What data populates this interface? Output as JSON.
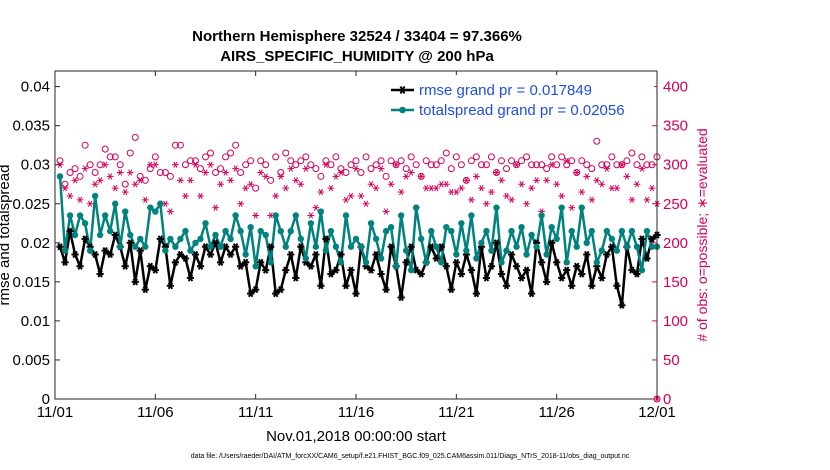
{
  "chart_data": {
    "type": "line",
    "title": "Northern Hemisphere 32524 / 33404 = 97.366%",
    "subtitle": "AIRS_SPECIFIC_HUMIDITY @ 200 hPa",
    "xlabel": "Nov.01,2018 00:00:00 start",
    "ylabel": "rmse and totalspread",
    "y2label": "# of obs: o=possible; ∗=evaluated",
    "footnote": "data file: /Users/raeder/DAI/ATM_forcXX/CAM6_setup/f.e21.FHIST_BGC.f09_025.CAM6assim.011/Diags_NTrS_2018-11/obs_diag_output.nc",
    "xlim": [
      0,
      30
    ],
    "ylim": [
      0,
      0.042
    ],
    "y2lim": [
      0,
      420
    ],
    "x_ticks": [
      0,
      5,
      10,
      15,
      20,
      25,
      30
    ],
    "x_tick_labels": [
      "11/01",
      "11/06",
      "11/11",
      "11/16",
      "11/21",
      "11/26",
      "12/01"
    ],
    "y_ticks": [
      0,
      0.005,
      0.01,
      0.015,
      0.02,
      0.025,
      0.03,
      0.035,
      0.04
    ],
    "y_tick_labels": [
      "0",
      "0.005",
      "0.01",
      "0.015",
      "0.02",
      "0.025",
      "0.03",
      "0.035",
      "0.04"
    ],
    "y2_ticks": [
      0,
      50,
      100,
      150,
      200,
      250,
      300,
      350,
      400
    ],
    "y2_tick_labels": [
      "0",
      "50",
      "100",
      "150",
      "200",
      "250",
      "300",
      "350",
      "400"
    ],
    "x": [
      0.25,
      0.5,
      0.75,
      1,
      1.25,
      1.5,
      1.75,
      2,
      2.25,
      2.5,
      2.75,
      3,
      3.25,
      3.5,
      3.75,
      4,
      4.25,
      4.5,
      4.75,
      5,
      5.25,
      5.5,
      5.75,
      6,
      6.25,
      6.5,
      6.75,
      7,
      7.25,
      7.5,
      7.75,
      8,
      8.25,
      8.5,
      8.75,
      9,
      9.25,
      9.5,
      9.75,
      10,
      10.25,
      10.5,
      10.75,
      11,
      11.25,
      11.5,
      11.75,
      12,
      12.25,
      12.5,
      12.75,
      13,
      13.25,
      13.5,
      13.75,
      14,
      14.25,
      14.5,
      14.75,
      15,
      15.25,
      15.5,
      15.75,
      16,
      16.25,
      16.5,
      16.75,
      17,
      17.25,
      17.5,
      17.75,
      18,
      18.25,
      18.5,
      18.75,
      19,
      19.25,
      19.5,
      19.75,
      20,
      20.25,
      20.5,
      20.75,
      21,
      21.25,
      21.5,
      21.75,
      22,
      22.25,
      22.5,
      22.75,
      23,
      23.25,
      23.5,
      23.75,
      24,
      24.25,
      24.5,
      24.75,
      25,
      25.25,
      25.5,
      25.75,
      26,
      26.25,
      26.5,
      26.75,
      27,
      27.25,
      27.5,
      27.75,
      28,
      28.25,
      28.5,
      28.75,
      29,
      29.25,
      29.5,
      29.75,
      30
    ],
    "series": [
      {
        "name": "rmse grand pr = 0.017849",
        "color": "#000000",
        "marker": "asterisk",
        "axis": "left",
        "values": [
          0.0195,
          0.0175,
          0.0215,
          0.0185,
          0.017,
          0.0205,
          0.0195,
          0.0185,
          0.016,
          0.019,
          0.0185,
          0.021,
          0.0195,
          0.017,
          0.02,
          0.015,
          0.019,
          0.014,
          0.017,
          0.0165,
          0.0205,
          0.0195,
          0.0145,
          0.0175,
          0.0185,
          0.018,
          0.0155,
          0.0185,
          0.017,
          0.0195,
          0.0185,
          0.02,
          0.0175,
          0.0195,
          0.0185,
          0.0195,
          0.017,
          0.0175,
          0.0135,
          0.014,
          0.0175,
          0.0165,
          0.0195,
          0.0135,
          0.014,
          0.0165,
          0.0185,
          0.0155,
          0.0195,
          0.0175,
          0.017,
          0.0185,
          0.0145,
          0.0205,
          0.016,
          0.0165,
          0.0185,
          0.0145,
          0.0165,
          0.0135,
          0.0195,
          0.017,
          0.0165,
          0.0185,
          0.016,
          0.014,
          0.0195,
          0.017,
          0.013,
          0.0175,
          0.0195,
          0.0165,
          0.016,
          0.0175,
          0.0195,
          0.018,
          0.0195,
          0.017,
          0.014,
          0.0175,
          0.016,
          0.0185,
          0.0165,
          0.0135,
          0.0195,
          0.0155,
          0.017,
          0.02,
          0.016,
          0.0145,
          0.0185,
          0.017,
          0.0155,
          0.0165,
          0.0135,
          0.02,
          0.0175,
          0.015,
          0.02,
          0.0175,
          0.0155,
          0.0165,
          0.0145,
          0.017,
          0.016,
          0.0185,
          0.0145,
          0.017,
          0.0155,
          0.0185,
          0.0195,
          0.0145,
          0.012,
          0.0195,
          0.0165,
          0.016,
          0.0205,
          0.018,
          0.0205,
          0.021
        ]
      },
      {
        "name": "totalspread grand pr = 0.02056",
        "color": "#00827f",
        "marker": "dot",
        "axis": "left",
        "values": [
          0.0285,
          0.019,
          0.0235,
          0.021,
          0.0235,
          0.0225,
          0.019,
          0.026,
          0.021,
          0.0235,
          0.0215,
          0.025,
          0.0195,
          0.024,
          0.021,
          0.0195,
          0.0205,
          0.0195,
          0.0245,
          0.024,
          0.025,
          0.019,
          0.0205,
          0.0195,
          0.0205,
          0.0215,
          0.019,
          0.02,
          0.0205,
          0.0225,
          0.0195,
          0.021,
          0.0195,
          0.0215,
          0.0205,
          0.0235,
          0.0215,
          0.0185,
          0.022,
          0.017,
          0.0215,
          0.021,
          0.0175,
          0.0235,
          0.0215,
          0.0195,
          0.0215,
          0.0235,
          0.0205,
          0.018,
          0.0225,
          0.0195,
          0.024,
          0.019,
          0.0215,
          0.0195,
          0.0175,
          0.0235,
          0.0195,
          0.0205,
          0.0195,
          0.0175,
          0.0225,
          0.0205,
          0.018,
          0.0215,
          0.022,
          0.017,
          0.0235,
          0.019,
          0.0165,
          0.0245,
          0.0205,
          0.0175,
          0.0215,
          0.0195,
          0.0175,
          0.022,
          0.0215,
          0.0185,
          0.0225,
          0.019,
          0.0235,
          0.018,
          0.02,
          0.0215,
          0.019,
          0.0245,
          0.0175,
          0.019,
          0.0215,
          0.0195,
          0.022,
          0.0185,
          0.021,
          0.0195,
          0.0235,
          0.0185,
          0.022,
          0.0205,
          0.0245,
          0.0175,
          0.0215,
          0.0195,
          0.0245,
          0.02,
          0.0215,
          0.0175,
          0.019,
          0.0215,
          0.0205,
          0.019,
          0.0215,
          0.0195,
          0.0215,
          0.0195,
          0.0165,
          0.0215,
          0.0195,
          0.0195
        ]
      },
      {
        "name": "possible",
        "color": "#d6005a",
        "marker": "open-circle",
        "axis": "right",
        "values": [
          305,
          275,
          290,
          295,
          285,
          325,
          300,
          290,
          300,
          320,
          310,
          310,
          300,
          275,
          315,
          335,
          285,
          280,
          295,
          310,
          290,
          290,
          285,
          325,
          325,
          300,
          305,
          305,
          295,
          310,
          315,
          290,
          295,
          310,
          315,
          325,
          290,
          300,
          305,
          270,
          305,
          300,
          280,
          310,
          290,
          315,
          305,
          300,
          305,
          310,
          300,
          295,
          285,
          305,
          300,
          310,
          295,
          290,
          300,
          305,
          290,
          310,
          295,
          300,
          305,
          285,
          305,
          300,
          305,
          295,
          310,
          300,
          285,
          305,
          300,
          300,
          305,
          315,
          295,
          310,
          300,
          280,
          305,
          310,
          300,
          300,
          310,
          290,
          305,
          295,
          305,
          300,
          305,
          310,
          300,
          300,
          300,
          295,
          310,
          300,
          310,
          300,
          305,
          290,
          305,
          300,
          295,
          330,
          300,
          300,
          310,
          300,
          300,
          305,
          315,
          300,
          310,
          300,
          300,
          310
        ]
      },
      {
        "name": "evaluated",
        "color": "#d6005a",
        "marker": "asterisk",
        "axis": "right",
        "values": [
          300,
          270,
          260,
          280,
          255,
          295,
          250,
          275,
          280,
          300,
          285,
          270,
          290,
          265,
          290,
          275,
          280,
          255,
          300,
          300,
          250,
          250,
          240,
          300,
          280,
          260,
          280,
          300,
          260,
          290,
          300,
          245,
          275,
          290,
          280,
          295,
          250,
          270,
          275,
          235,
          290,
          285,
          235,
          260,
          285,
          270,
          295,
          280,
          275,
          295,
          235,
          245,
          265,
          300,
          270,
          285,
          290,
          255,
          260,
          295,
          260,
          250,
          275,
          270,
          295,
          240,
          275,
          300,
          265,
          285,
          290,
          245,
          285,
          270,
          270,
          270,
          275,
          275,
          265,
          265,
          270,
          280,
          255,
          285,
          270,
          250,
          265,
          290,
          280,
          260,
          255,
          300,
          275,
          250,
          270,
          280,
          240,
          280,
          300,
          275,
          260,
          305,
          245,
          290,
          265,
          285,
          255,
          280,
          275,
          295,
          270,
          270,
          300,
          285,
          255,
          275,
          295,
          255,
          270,
          250
        ]
      }
    ],
    "legend": [
      {
        "label": "rmse grand pr = 0.017849",
        "color": "#000000"
      },
      {
        "label": "totalspread grand pr = 0.02056",
        "color": "#00827f"
      }
    ],
    "legend_position": "top-right"
  }
}
